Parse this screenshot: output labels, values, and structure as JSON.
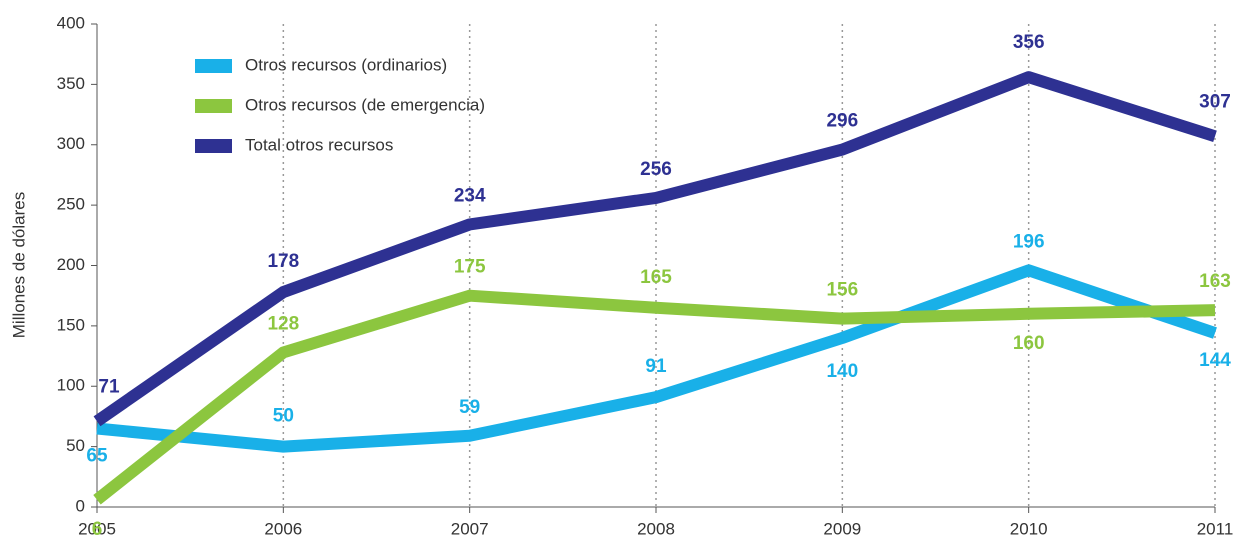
{
  "chart_data": {
    "type": "line",
    "y_label": "Millones de dólares",
    "x": [
      2005,
      2006,
      2007,
      2008,
      2009,
      2010,
      2011
    ],
    "xlim": [
      2005,
      2011
    ],
    "xticks": [
      2005,
      2006,
      2007,
      2008,
      2009,
      2010,
      2011
    ],
    "ylim": [
      0,
      400
    ],
    "yticks": [
      0,
      50,
      100,
      150,
      200,
      250,
      300,
      350,
      400
    ],
    "grid": "x-dotted",
    "legend": "top-left",
    "series": [
      {
        "name": "Otros recursos (ordinarios)",
        "color": "#19b0e8",
        "values": [
          65,
          50,
          59,
          91,
          140,
          196,
          144
        ]
      },
      {
        "name": "Otros recursos (de emergencia)",
        "color": "#8cc63f",
        "values": [
          6,
          128,
          175,
          165,
          156,
          160,
          163
        ]
      },
      {
        "name": "Total otros recursos",
        "color": "#2e3192",
        "values": [
          71,
          178,
          234,
          256,
          296,
          356,
          307
        ]
      }
    ]
  }
}
